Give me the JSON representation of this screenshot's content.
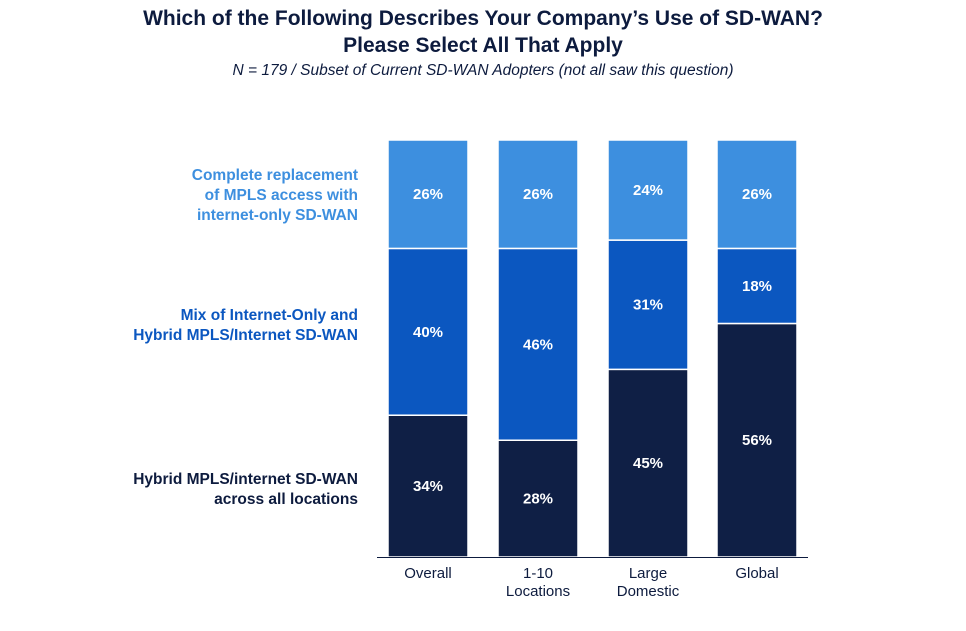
{
  "title_line1": "Which of the Following Describes Your Company’s Use of SD-WAN?",
  "title_line2": "Please Select All That Apply",
  "subtitle": "N = 179 / Subset of Current SD-WAN Adopters (not all saw this question)",
  "colors": {
    "dark": "#0f1f45",
    "mid": "#0b57c0",
    "light": "#3d8fdf",
    "axis": "#0d1b3e"
  },
  "legend": {
    "complete": "Complete replacement\nof MPLS access with\ninternet-only SD-WAN",
    "mix": "Mix of Internet-Only and\nHybrid MPLS/Internet SD-WAN",
    "hybrid": "Hybrid MPLS/internet SD-WAN\nacross all locations"
  },
  "chart_data": {
    "type": "bar",
    "stacked": true,
    "categories": [
      "Overall",
      "1-10\nLocations",
      "Large\nDomestic",
      "Global"
    ],
    "series": [
      {
        "name": "Hybrid MPLS/internet SD-WAN across all locations",
        "values": [
          34,
          28,
          45,
          56
        ],
        "color": "#0f1f45"
      },
      {
        "name": "Mix of Internet-Only and Hybrid MPLS/Internet SD-WAN",
        "values": [
          40,
          46,
          31,
          18
        ],
        "color": "#0b57c0"
      },
      {
        "name": "Complete replacement of MPLS access with internet-only SD-WAN",
        "values": [
          26,
          26,
          24,
          26
        ],
        "color": "#3d8fdf"
      }
    ],
    "value_suffix": "%",
    "ylim": [
      0,
      100
    ],
    "grid": false
  }
}
